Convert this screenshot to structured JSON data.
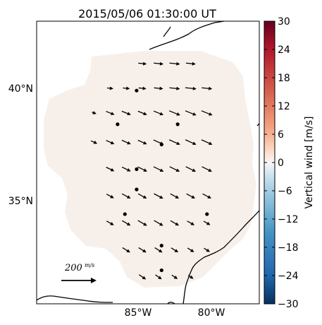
{
  "title": "2015/05/06 01:30:00 UT",
  "latitude_ticks": [
    {
      "value": 40,
      "label": "40°N"
    },
    {
      "value": 35,
      "label": "35°N"
    }
  ],
  "longitude_ticks": [
    {
      "value": -85,
      "label": "85°W"
    },
    {
      "value": -80,
      "label": "80°W"
    }
  ],
  "colorbar": {
    "label": "Vertical wind [m/s]",
    "colormap": "RdBu_r",
    "vmin": -30,
    "vmax": 30,
    "ticks": [
      30,
      24,
      18,
      12,
      6,
      0,
      -6,
      -12,
      -18,
      -24,
      -30
    ],
    "tick_labels": [
      "30",
      "24",
      "18",
      "12",
      "6",
      "0",
      "−6",
      "−12",
      "−18",
      "−24",
      "−30"
    ],
    "colors": {
      "low": "#053061",
      "mid": "#f7f7f7",
      "high": "#67001f"
    }
  },
  "quiver_key": {
    "value_label": "200",
    "unit_label": "m/s",
    "speed_m_s": 200
  },
  "domain_fill": {
    "vertical_wind_m_s": 0,
    "color": "#f7f0ea"
  },
  "vectors": {
    "rows_lat": [
      41.1,
      40.0,
      38.9,
      37.6,
      36.4,
      35.2,
      34.0,
      32.8,
      31.6
    ],
    "cols_lon": [
      -88.0,
      -86.9,
      -85.8,
      -84.7,
      -83.6,
      -82.5,
      -81.4,
      -80.3,
      -79.2
    ],
    "direction": "east-southeast"
  },
  "stations": [
    {
      "lat": 39.9,
      "lon": -85.1
    },
    {
      "lat": 38.4,
      "lon": -86.4
    },
    {
      "lat": 38.4,
      "lon": -82.3
    },
    {
      "lat": 37.5,
      "lon": -83.4
    },
    {
      "lat": 36.4,
      "lon": -85.1
    },
    {
      "lat": 35.5,
      "lon": -85.1
    },
    {
      "lat": 34.4,
      "lon": -85.9
    },
    {
      "lat": 34.4,
      "lon": -80.3
    },
    {
      "lat": 33.0,
      "lon": -83.4
    },
    {
      "lat": 31.9,
      "lon": -83.4
    }
  ]
}
